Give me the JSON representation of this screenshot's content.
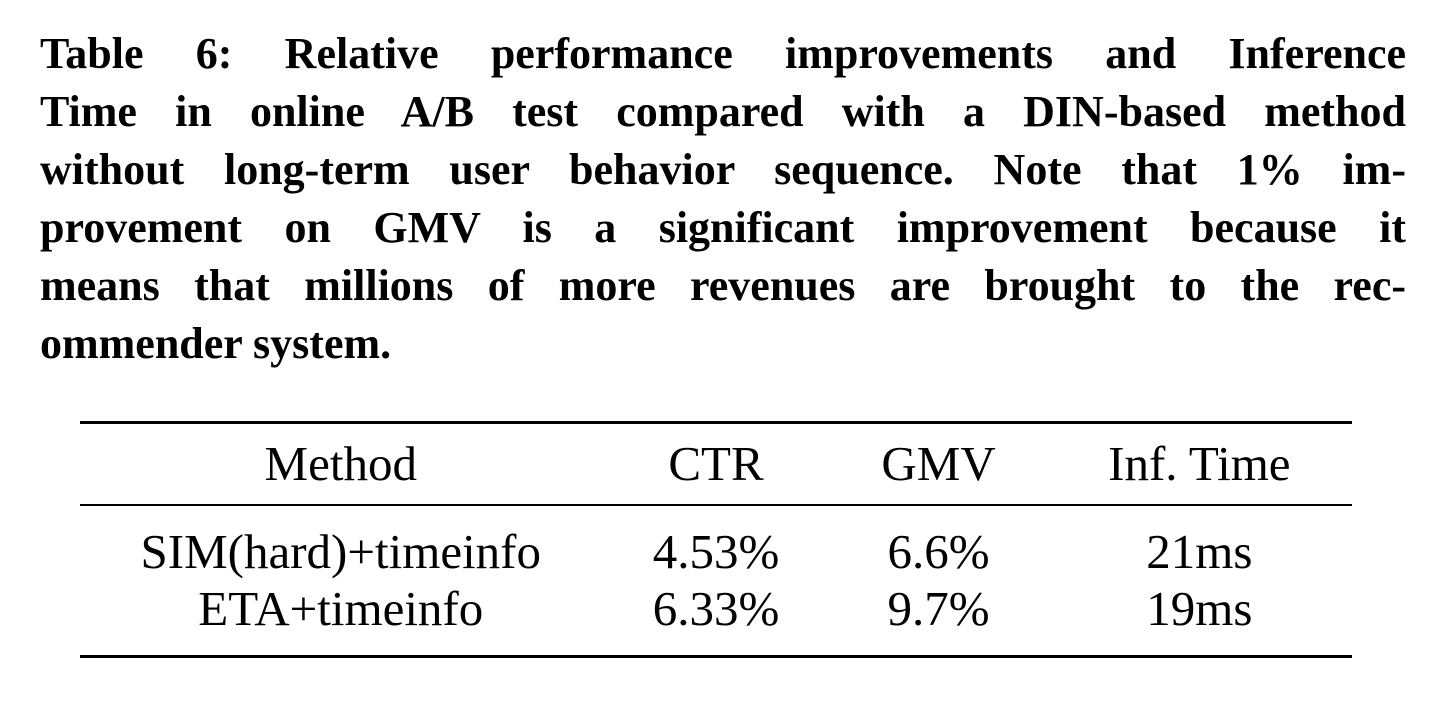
{
  "caption": {
    "lines": [
      "Table 6: Relative performance improvements and Inference",
      "Time in online A/B test compared with a DIN-based method",
      "without long-term user behavior sequence. Note that 1% im-",
      "provement on GMV is a significant improvement because it",
      "means that millions of more revenues are brought to the rec-",
      "ommender system."
    ]
  },
  "table": {
    "columns": [
      "Method",
      "CTR",
      "GMV",
      "Inf. Time"
    ],
    "rows": [
      {
        "method": "SIM(hard)+timeinfo",
        "ctr": "4.53%",
        "gmv": "6.6%",
        "inf_time": "21ms"
      },
      {
        "method": "ETA+timeinfo",
        "ctr": "6.33%",
        "gmv": "9.7%",
        "inf_time": "19ms"
      }
    ]
  },
  "colors": {
    "text": "#000000",
    "background": "#ffffff",
    "rule": "#000000"
  }
}
